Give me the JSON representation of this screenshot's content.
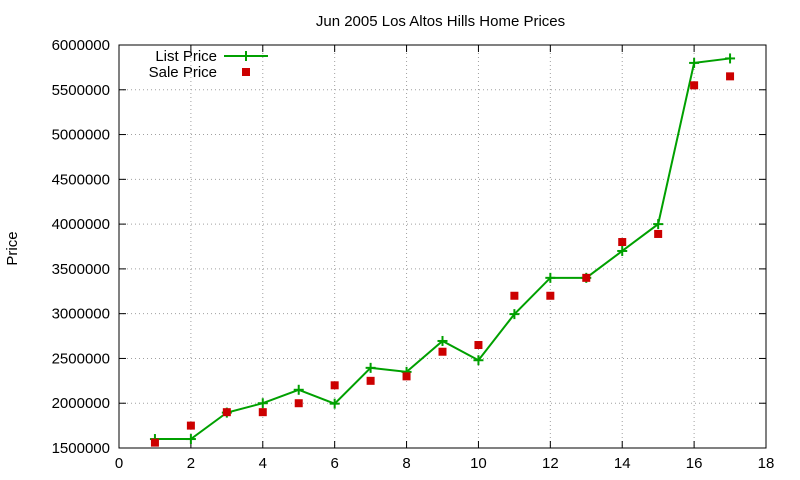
{
  "chart_data": {
    "type": "line",
    "title": "Jun 2005 Los Altos Hills Home Prices",
    "xlabel": "",
    "ylabel": "Price",
    "xlim": [
      0,
      18
    ],
    "ylim": [
      1500000,
      6000000
    ],
    "xticks": [
      0,
      2,
      4,
      6,
      8,
      10,
      12,
      14,
      16,
      18
    ],
    "yticks": [
      1500000,
      2000000,
      2500000,
      3000000,
      3500000,
      4000000,
      4500000,
      5000000,
      5500000,
      6000000
    ],
    "grid": true,
    "legend_position": "top-left",
    "series": [
      {
        "name": "List Price",
        "style": "line-with-plus-markers",
        "color": "#00a000",
        "x": [
          1,
          2,
          3,
          4,
          5,
          6,
          7,
          8,
          9,
          10,
          11,
          12,
          13,
          14,
          15,
          16,
          17
        ],
        "y": [
          1600000,
          1600000,
          1895000,
          2000000,
          2150000,
          1995000,
          2395000,
          2350000,
          2695000,
          2480000,
          2995000,
          3400000,
          3400000,
          3700000,
          4000000,
          5800000,
          5850000
        ]
      },
      {
        "name": "Sale Price",
        "style": "square-markers",
        "color": "#cc0000",
        "x": [
          1,
          2,
          3,
          4,
          5,
          6,
          7,
          8,
          9,
          10,
          11,
          12,
          13,
          14,
          15,
          16,
          17
        ],
        "y": [
          1560000,
          1750000,
          1900000,
          1900000,
          2000000,
          2200000,
          2250000,
          2300000,
          2575000,
          2650000,
          3200000,
          3200000,
          3400000,
          3800000,
          3890000,
          5550000,
          5650000
        ]
      }
    ]
  }
}
